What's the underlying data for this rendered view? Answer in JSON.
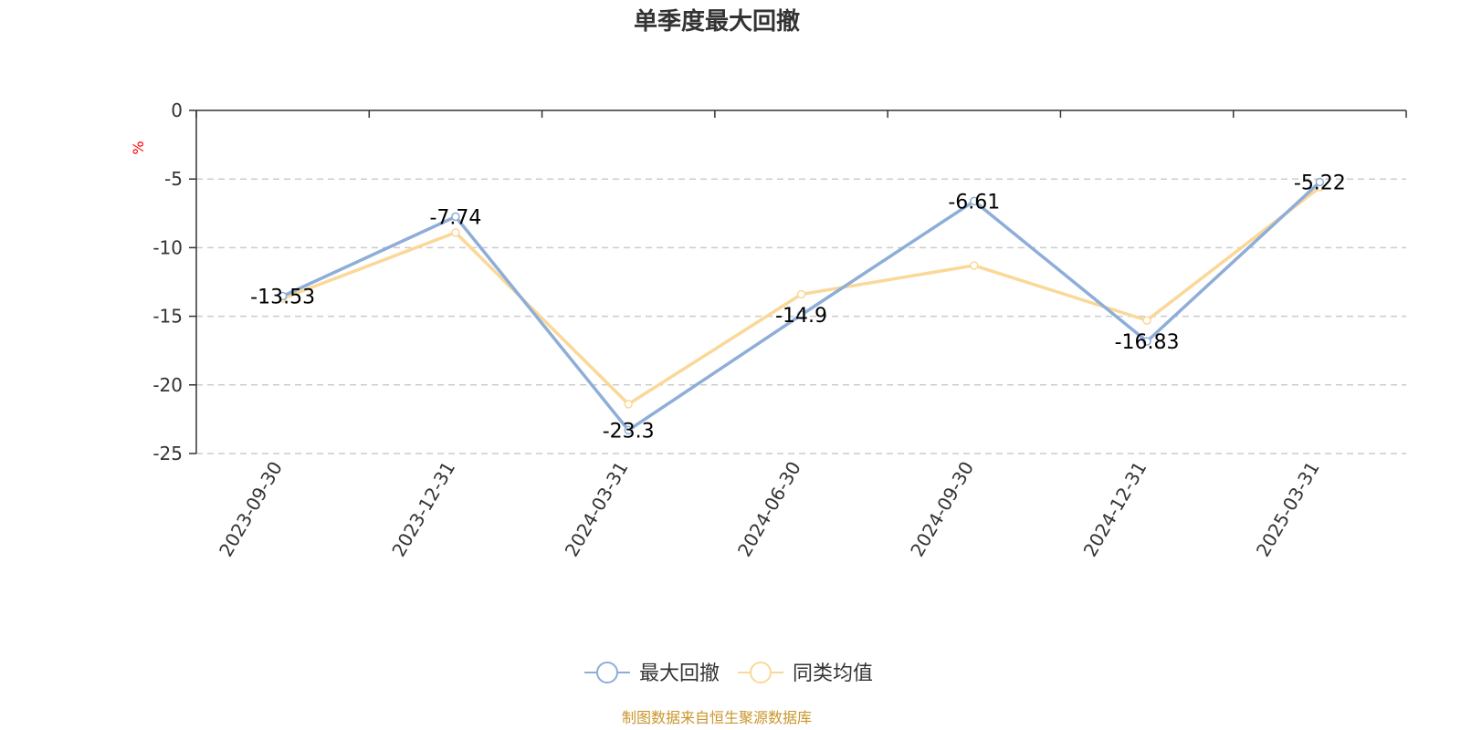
{
  "chart_data": {
    "type": "line",
    "title": "单季度最大回撤",
    "ylabel": "%",
    "xlabel": "",
    "ylim": [
      -25,
      0
    ],
    "yticks": [
      0,
      -5,
      -10,
      -15,
      -20,
      -25
    ],
    "grid": true,
    "legend_position": "bottom-center",
    "categories": [
      "2023-09-30",
      "2023-12-31",
      "2024-03-31",
      "2024-06-30",
      "2024-09-30",
      "2024-12-31",
      "2025-03-31"
    ],
    "series": [
      {
        "name": "最大回撤",
        "color": "#8eadd8",
        "values": [
          -13.53,
          -7.74,
          -23.3,
          -14.9,
          -6.61,
          -16.83,
          -5.22
        ],
        "labels": [
          "-13.53",
          "-7.74",
          "-23.3",
          "-14.9",
          "-6.61",
          "-16.83",
          "-5.22"
        ]
      },
      {
        "name": "同类均值",
        "color": "#fad898",
        "values": [
          -13.7,
          -8.9,
          -21.4,
          -13.4,
          -11.3,
          -15.3,
          -5.6
        ]
      }
    ],
    "source": "制图数据来自恒生聚源数据库"
  }
}
